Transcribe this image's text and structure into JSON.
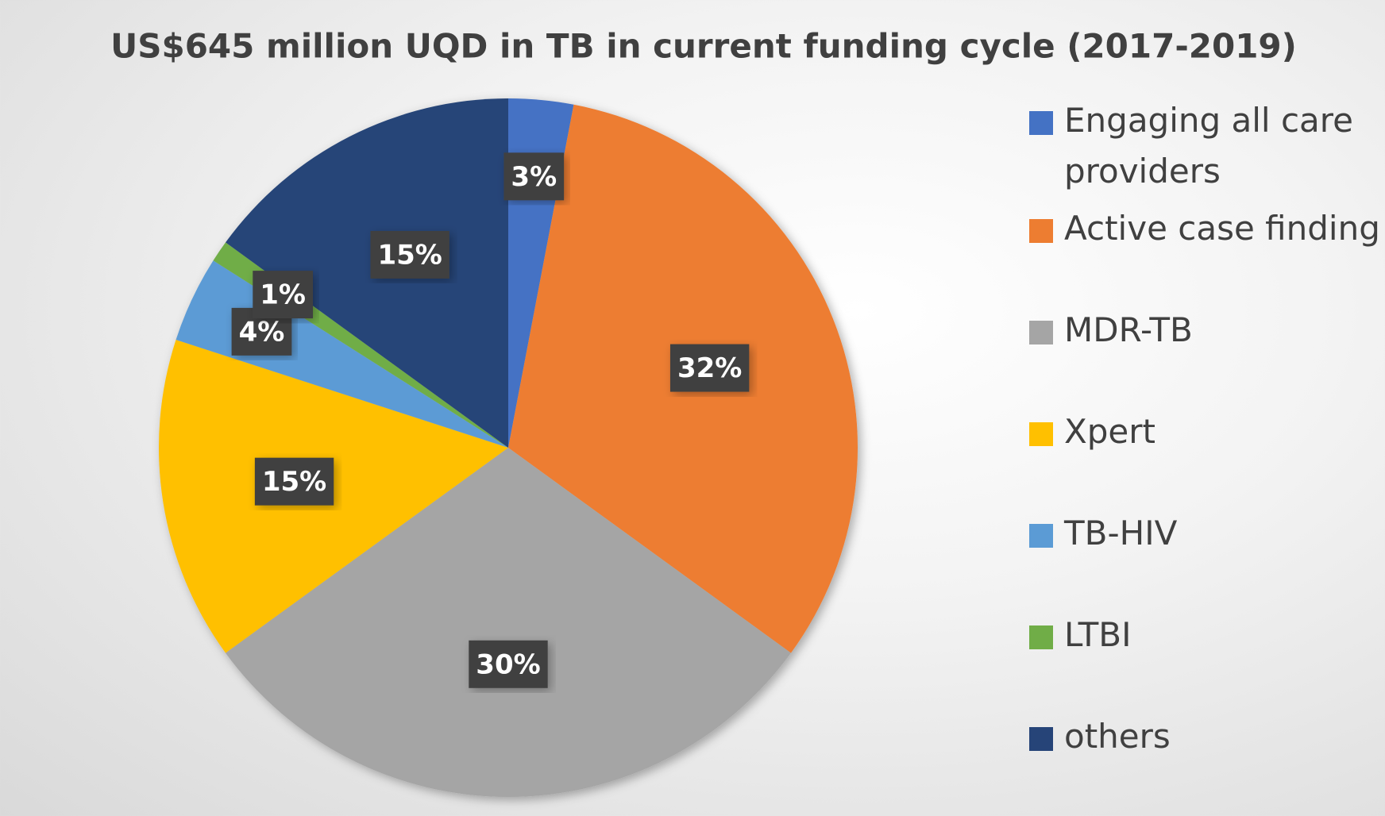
{
  "chart_data": {
    "type": "pie",
    "title": "US$645 million UQD in TB in current funding cycle (2017-2019)",
    "categories": [
      "Engaging all care providers",
      "Active case finding",
      "MDR-TB",
      "Xpert",
      "TB-HIV",
      "LTBI",
      "others"
    ],
    "values": [
      3,
      32,
      30,
      15,
      4,
      1,
      15
    ],
    "value_labels": [
      "3%",
      "32%",
      "30%",
      "15%",
      "4%",
      "1%",
      "15%"
    ],
    "colors": [
      "#4472c4",
      "#ed7d31",
      "#a5a5a5",
      "#ffc000",
      "#5b9bd5",
      "#70ad47",
      "#264478"
    ],
    "legend": "right"
  }
}
